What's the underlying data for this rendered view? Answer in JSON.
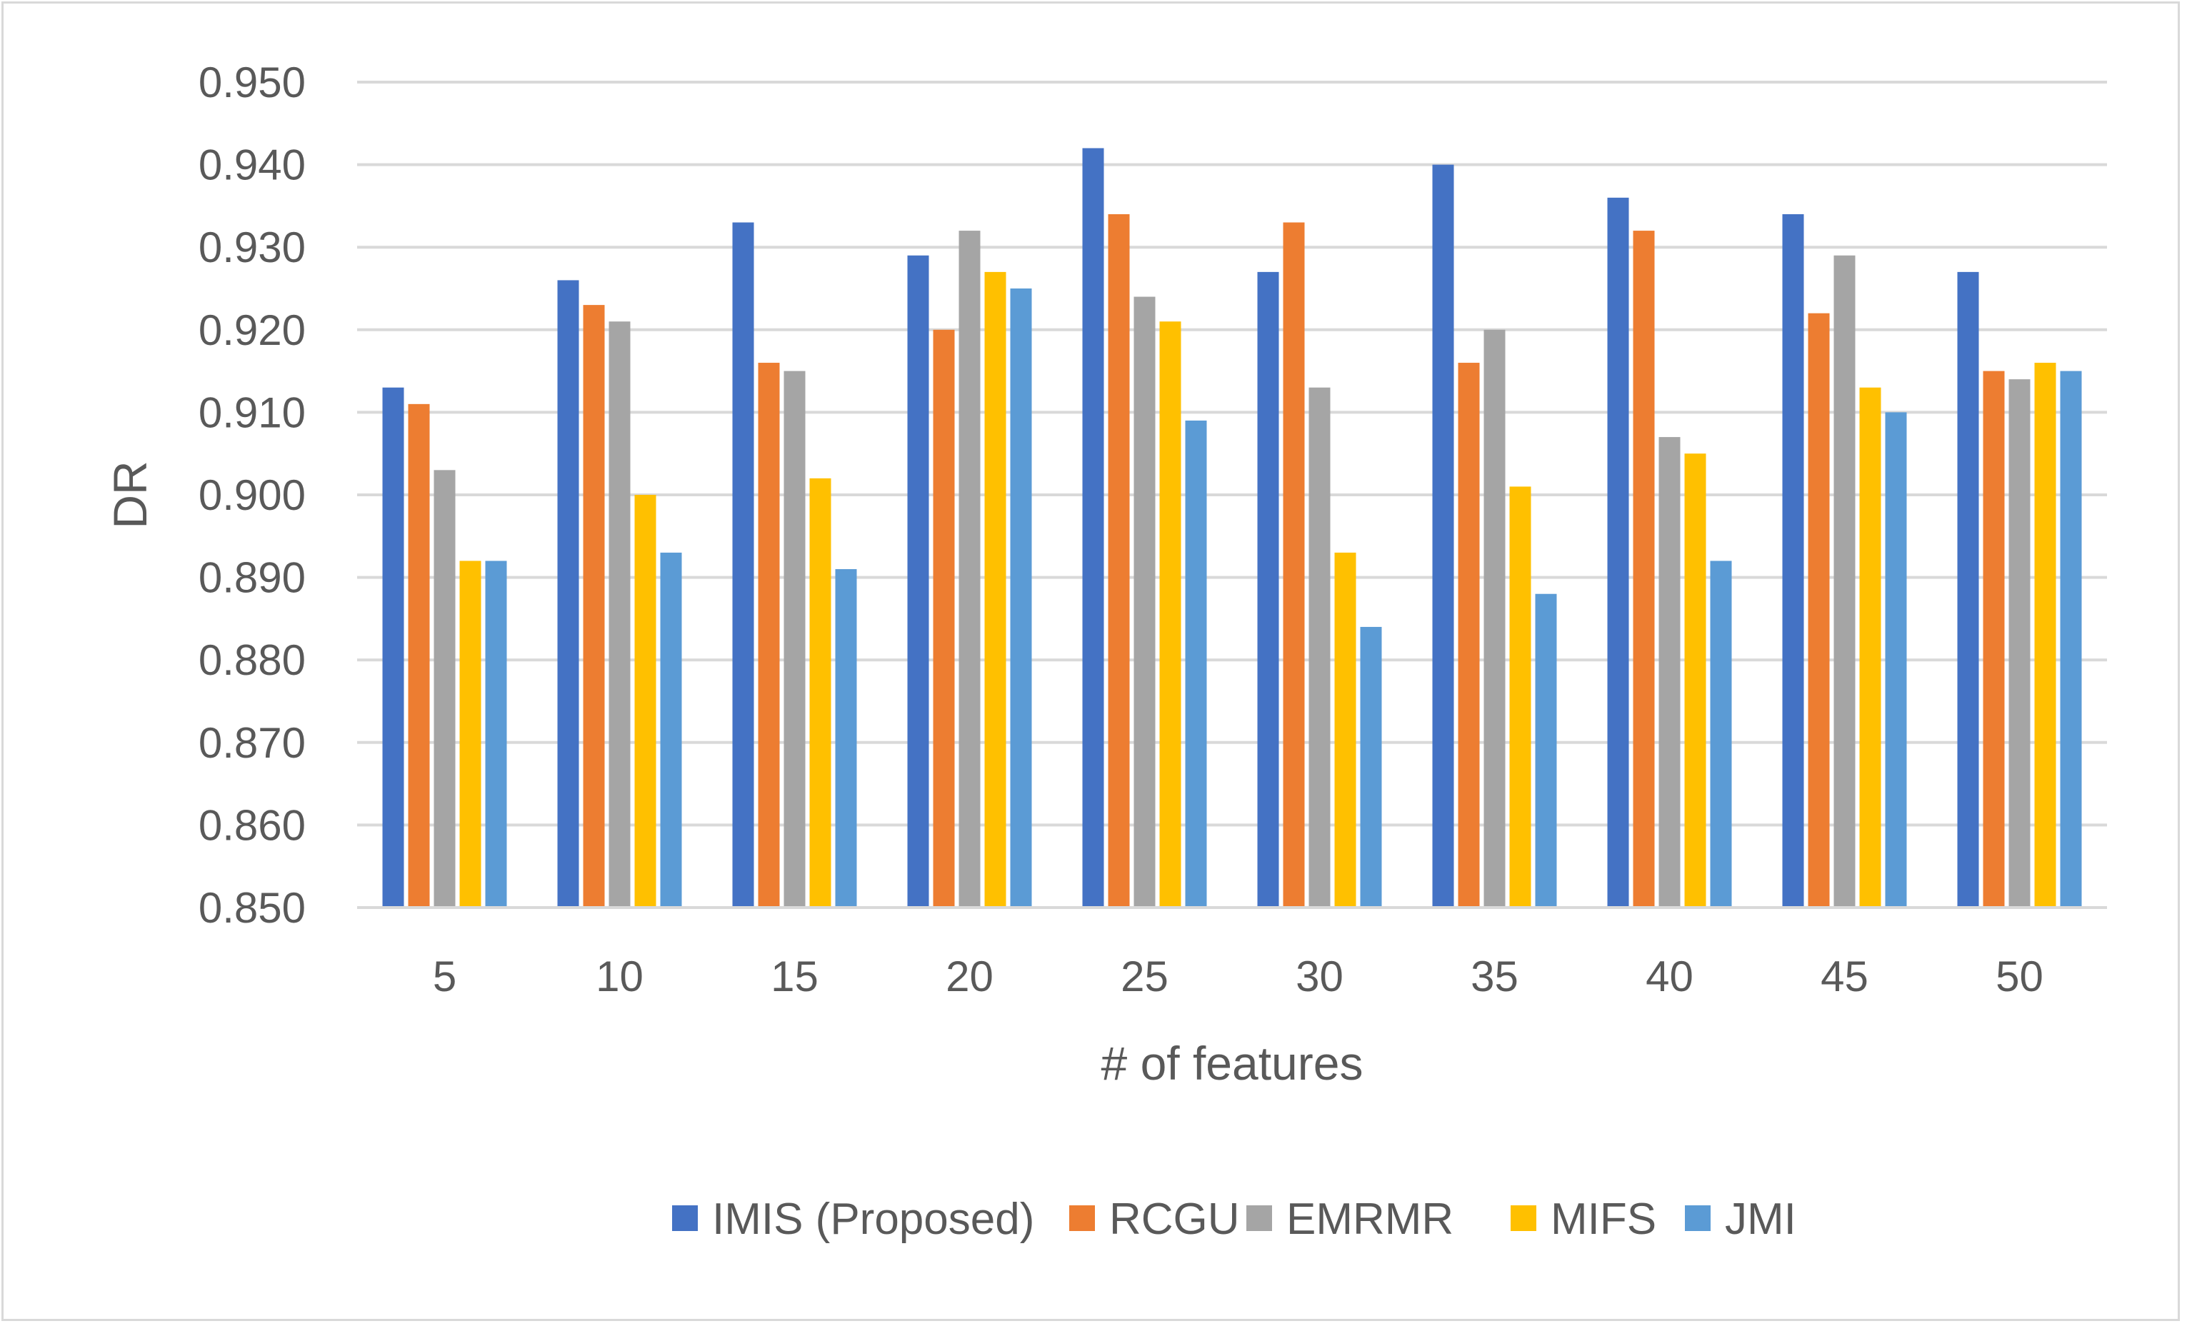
{
  "chart_data": {
    "type": "bar",
    "title": "",
    "xlabel": "# of features",
    "ylabel": "DR",
    "ylim": [
      0.85,
      0.95
    ],
    "ytick_step": 0.01,
    "ytick_labels": [
      "0.850",
      "0.860",
      "0.870",
      "0.880",
      "0.890",
      "0.900",
      "0.910",
      "0.920",
      "0.930",
      "0.940",
      "0.950"
    ],
    "categories": [
      "5",
      "10",
      "15",
      "20",
      "25",
      "30",
      "35",
      "40",
      "45",
      "50"
    ],
    "grid": true,
    "legend_position": "bottom",
    "series": [
      {
        "name": "IMIS (Proposed)",
        "color": "#4472c4",
        "values": [
          0.913,
          0.926,
          0.933,
          0.929,
          0.942,
          0.927,
          0.94,
          0.936,
          0.934,
          0.927
        ]
      },
      {
        "name": "RCGU",
        "color": "#ed7d31",
        "values": [
          0.911,
          0.923,
          0.916,
          0.92,
          0.934,
          0.933,
          0.916,
          0.932,
          0.922,
          0.915
        ]
      },
      {
        "name": "EMRMR",
        "color": "#a5a5a5",
        "values": [
          0.903,
          0.921,
          0.915,
          0.932,
          0.924,
          0.913,
          0.92,
          0.907,
          0.929,
          0.914
        ]
      },
      {
        "name": "MIFS",
        "color": "#ffc000",
        "values": [
          0.892,
          0.9,
          0.902,
          0.927,
          0.921,
          0.893,
          0.901,
          0.905,
          0.913,
          0.916
        ]
      },
      {
        "name": "JMI",
        "color": "#5b9bd5",
        "values": [
          0.892,
          0.893,
          0.891,
          0.925,
          0.909,
          0.884,
          0.888,
          0.892,
          0.91,
          0.915
        ]
      }
    ]
  }
}
